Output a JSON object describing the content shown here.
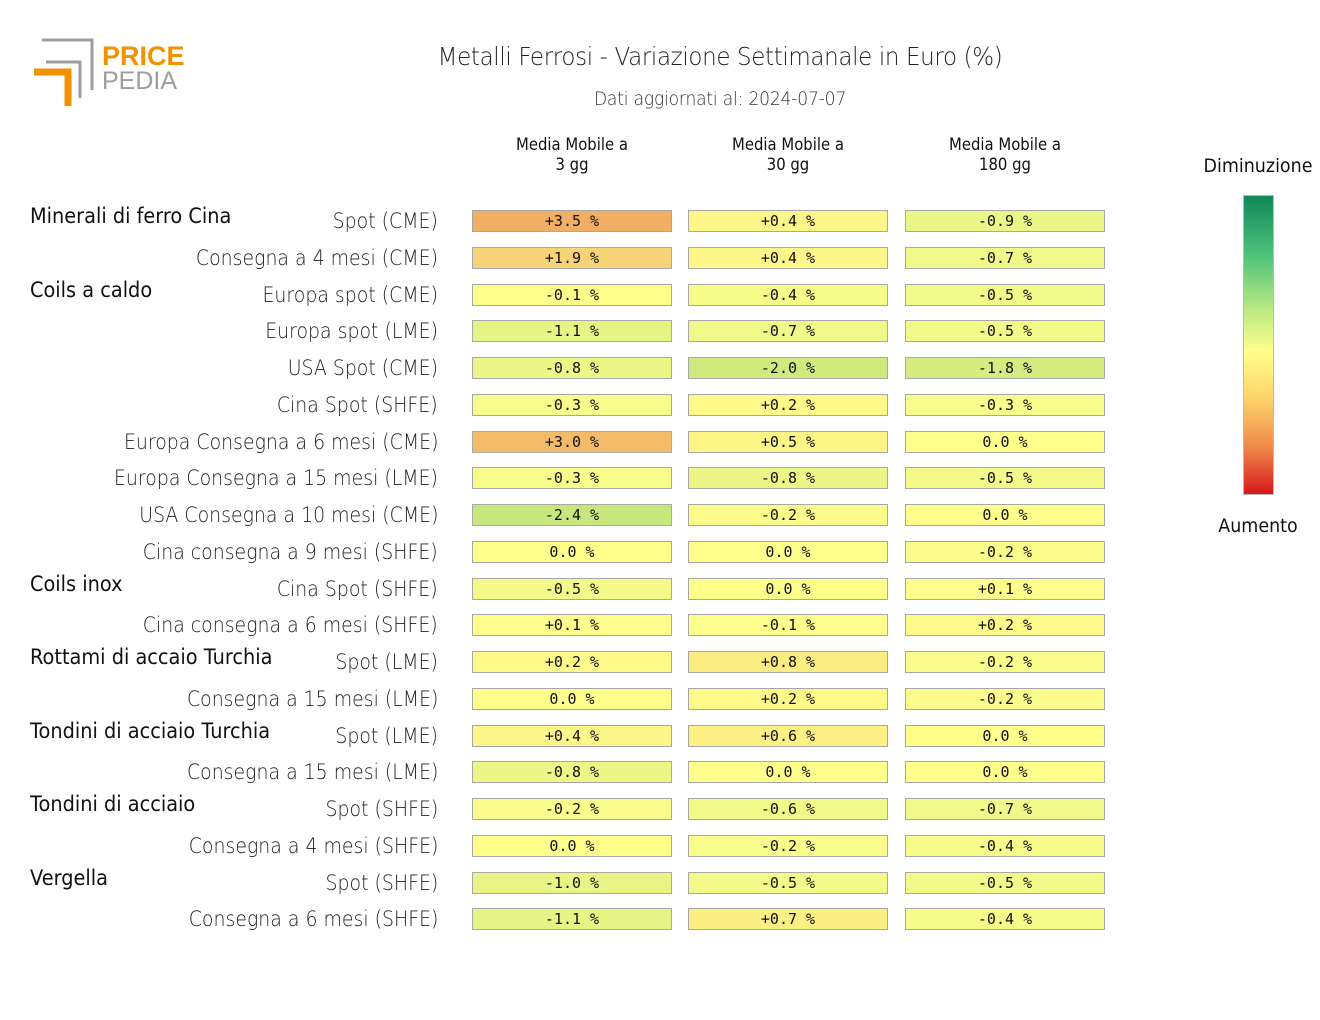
{
  "logo": {
    "line1": "PRICE",
    "line2": "PEDIA",
    "colors": {
      "orange": "#f39200",
      "gray": "#9d9d9c"
    }
  },
  "chart_data": {
    "type": "heatmap",
    "title": "Metalli Ferrosi - Variazione Settimanale in Euro (%)",
    "subtitle": "Dati aggiornati al: 2024-07-07",
    "columns": [
      "Media Mobile a\n3 gg",
      "Media Mobile a\n30 gg",
      "Media Mobile a\n180 gg"
    ],
    "legend": {
      "top": "Diminuzione",
      "bottom": "Aumento",
      "placement": "right"
    },
    "value_unit": "%",
    "color_scale": {
      "decrease": "#1a9850",
      "neutral": "#ffff8c",
      "increase": "#d7191c"
    },
    "groups": [
      {
        "name": "Minerali di ferro Cina",
        "rows": [
          {
            "label": "Spot (CME)",
            "values": [
              3.5,
              0.4,
              -0.9
            ]
          },
          {
            "label": "Consegna a 4 mesi (CME)",
            "values": [
              1.9,
              0.4,
              -0.7
            ]
          }
        ]
      },
      {
        "name": "Coils a caldo",
        "rows": [
          {
            "label": "Europa spot (CME)",
            "values": [
              -0.1,
              -0.4,
              -0.5
            ]
          },
          {
            "label": "Europa spot (LME)",
            "values": [
              -1.1,
              -0.7,
              -0.5
            ]
          },
          {
            "label": "USA Spot (CME)",
            "values": [
              -0.8,
              -2.0,
              -1.8
            ]
          },
          {
            "label": "Cina Spot (SHFE)",
            "values": [
              -0.3,
              0.2,
              -0.3
            ]
          },
          {
            "label": "Europa Consegna a 6 mesi (CME)",
            "values": [
              3.0,
              0.5,
              0.0
            ]
          },
          {
            "label": "Europa Consegna a 15 mesi (LME)",
            "values": [
              -0.3,
              -0.8,
              -0.5
            ]
          },
          {
            "label": "USA Consegna a 10 mesi (CME)",
            "values": [
              -2.4,
              -0.2,
              0.0
            ]
          },
          {
            "label": "Cina consegna a 9 mesi (SHFE)",
            "values": [
              0.0,
              0.0,
              -0.2
            ]
          }
        ]
      },
      {
        "name": "Coils inox",
        "rows": [
          {
            "label": "Cina Spot (SHFE)",
            "values": [
              -0.5,
              0.0,
              0.1
            ]
          },
          {
            "label": "Cina consegna a 6 mesi (SHFE)",
            "values": [
              0.1,
              -0.1,
              0.2
            ]
          }
        ]
      },
      {
        "name": "Rottami di accaio Turchia",
        "rows": [
          {
            "label": "Spot (LME)",
            "values": [
              0.2,
              0.8,
              -0.2
            ]
          },
          {
            "label": "Consegna a 15 mesi (LME)",
            "values": [
              0.0,
              0.2,
              -0.2
            ]
          }
        ]
      },
      {
        "name": "Tondini di acciaio Turchia",
        "rows": [
          {
            "label": "Spot (LME)",
            "values": [
              0.4,
              0.6,
              0.0
            ]
          },
          {
            "label": "Consegna a 15 mesi (LME)",
            "values": [
              -0.8,
              0.0,
              0.0
            ]
          }
        ]
      },
      {
        "name": "Tondini di acciaio",
        "rows": [
          {
            "label": "Spot (SHFE)",
            "values": [
              -0.2,
              -0.6,
              -0.7
            ]
          },
          {
            "label": "Consegna a 4 mesi (SHFE)",
            "values": [
              0.0,
              -0.2,
              -0.4
            ]
          }
        ]
      },
      {
        "name": "Vergella",
        "rows": [
          {
            "label": "Spot (SHFE)",
            "values": [
              -1.0,
              -0.5,
              -0.5
            ]
          },
          {
            "label": "Consegna a 6 mesi (SHFE)",
            "values": [
              -1.1,
              0.7,
              -0.4
            ]
          }
        ]
      }
    ]
  }
}
